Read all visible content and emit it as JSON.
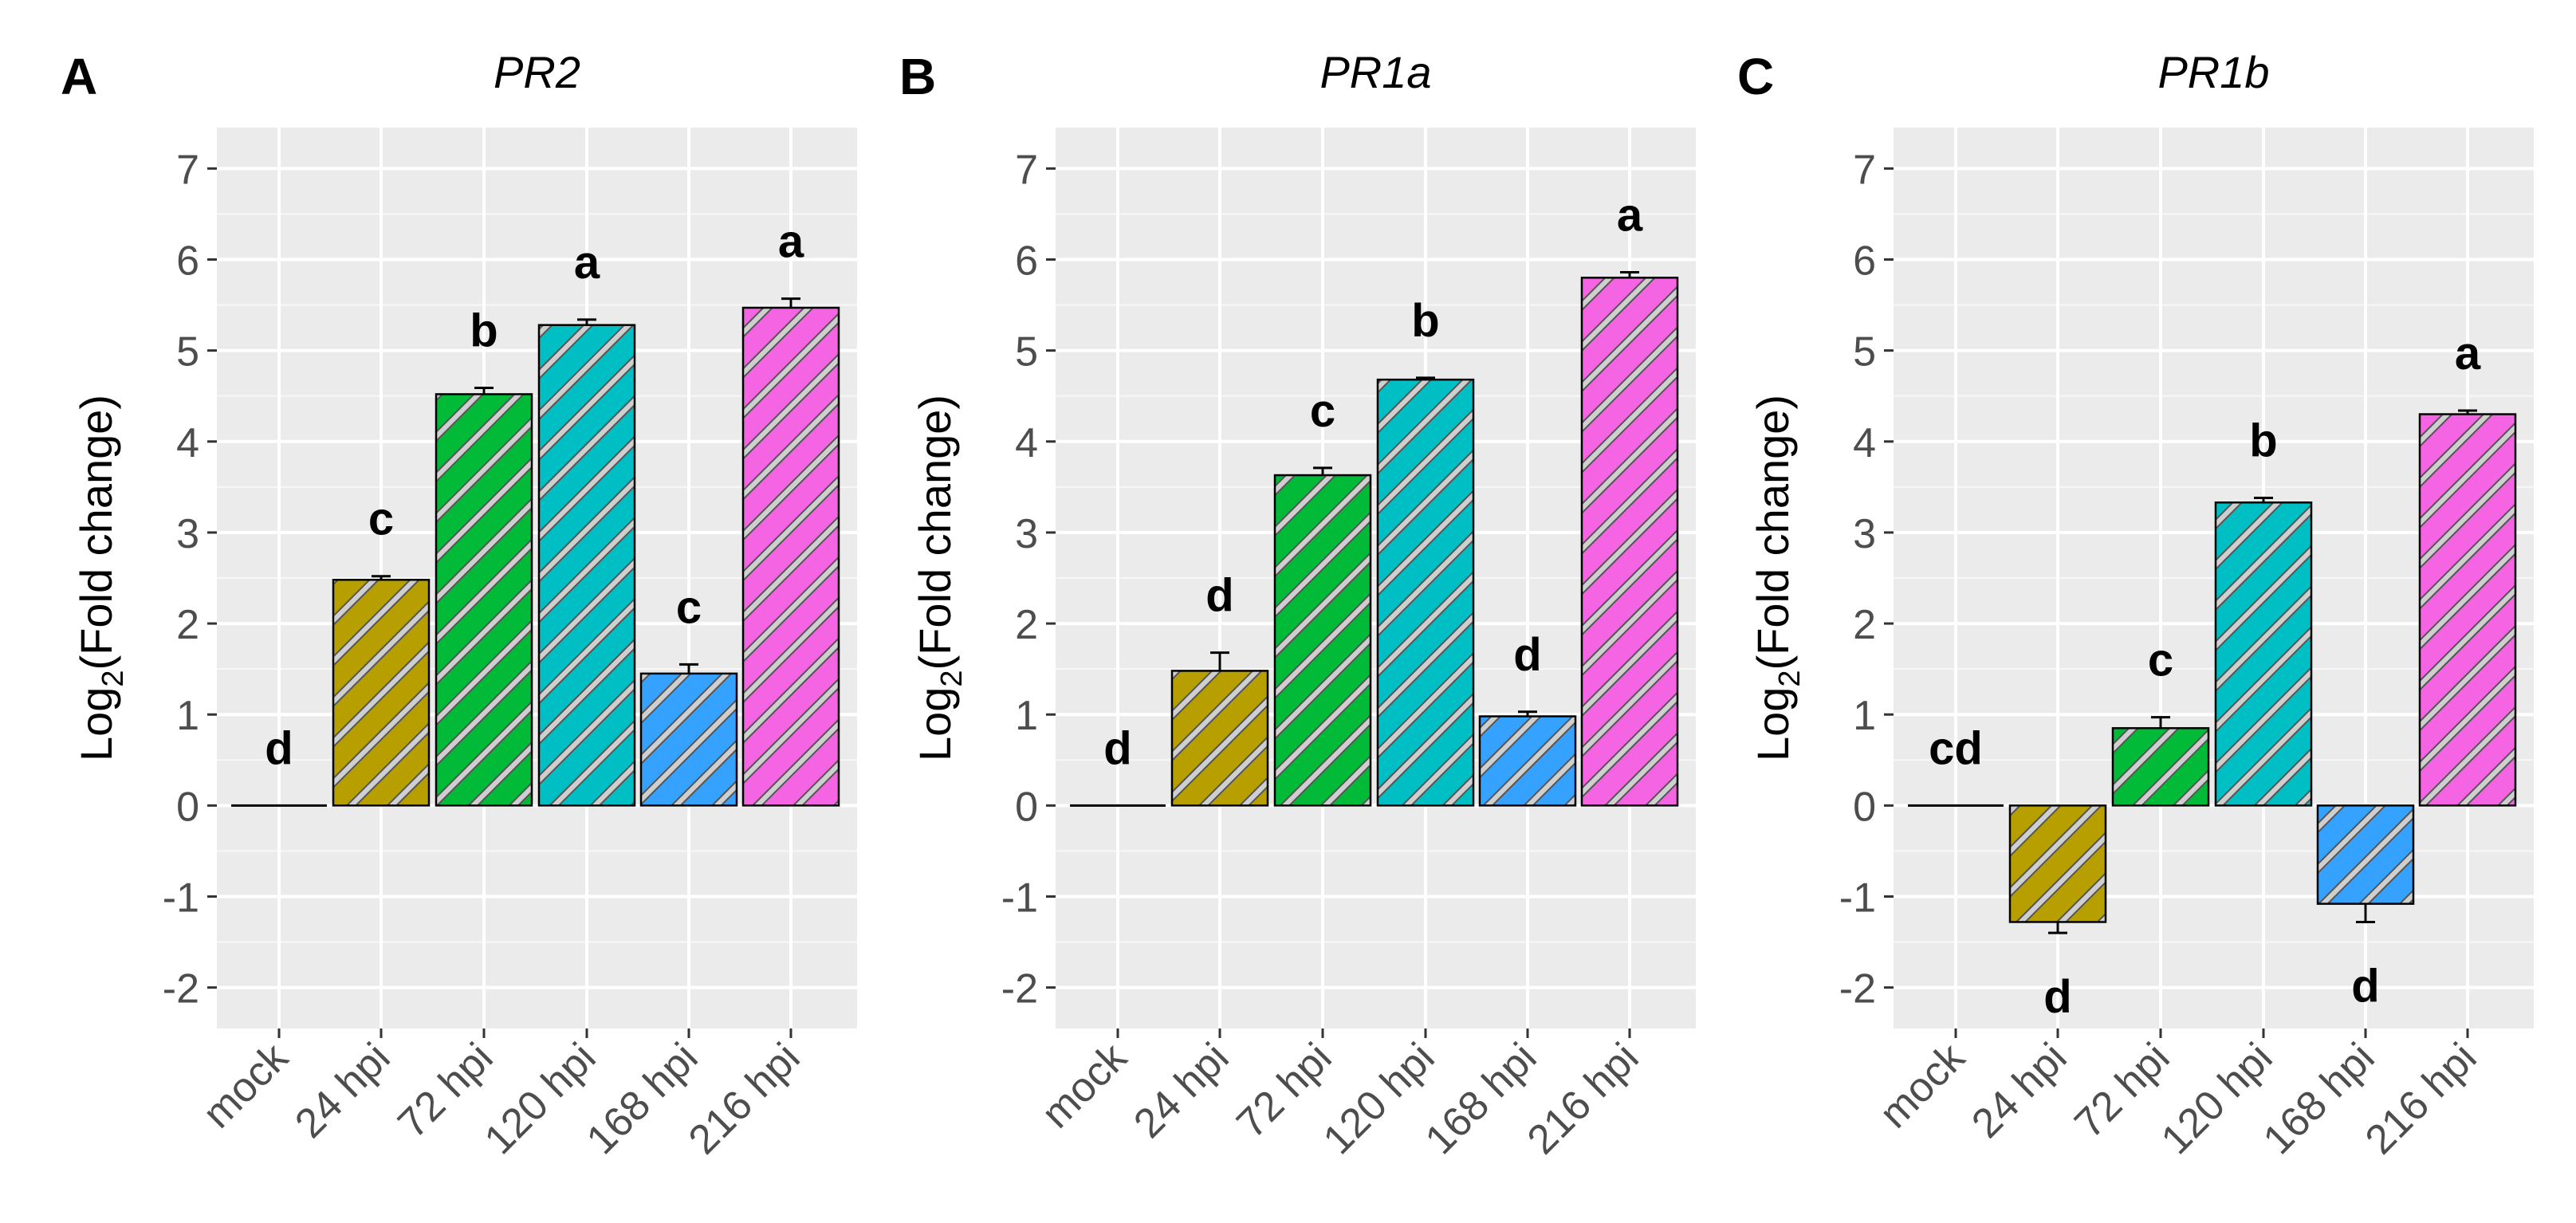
{
  "chart_data": {
    "type": "bar",
    "categories": [
      "mock",
      "24 hpi",
      "72 hpi",
      "120 hpi",
      "168 hpi",
      "216 hpi"
    ],
    "colors": [
      "#d9d9d9",
      "#b79f00",
      "#00ba38",
      "#00bfc4",
      "#35a2ff",
      "#f564e3"
    ],
    "ylabel_main": "Log",
    "ylabel_sub": "2",
    "ylabel_rest": "(Fold change)",
    "ylim": [
      -2.45,
      7.45
    ],
    "yticks": [
      -2,
      -1,
      0,
      1,
      2,
      3,
      4,
      5,
      6,
      7
    ],
    "panels": [
      {
        "label": "A",
        "title": "PR2",
        "values": [
          0,
          2.48,
          4.52,
          5.28,
          1.45,
          5.47
        ],
        "errors": [
          0,
          0.04,
          0.07,
          0.06,
          0.1,
          0.1
        ],
        "letters": [
          "d",
          "c",
          "b",
          "a",
          "c",
          "a"
        ]
      },
      {
        "label": "B",
        "title": "PR1a",
        "values": [
          0,
          1.48,
          3.63,
          4.68,
          0.98,
          5.8
        ],
        "errors": [
          0,
          0.2,
          0.08,
          0.02,
          0.05,
          0.06
        ],
        "letters": [
          "d",
          "d",
          "c",
          "b",
          "d",
          "a"
        ]
      },
      {
        "label": "C",
        "title": "PR1b",
        "values": [
          0,
          -1.28,
          0.85,
          3.33,
          -1.08,
          4.3
        ],
        "errors": [
          0,
          0.12,
          0.12,
          0.05,
          0.2,
          0.04
        ],
        "letters": [
          "cd",
          "d",
          "c",
          "b",
          "d",
          "a"
        ]
      }
    ]
  }
}
